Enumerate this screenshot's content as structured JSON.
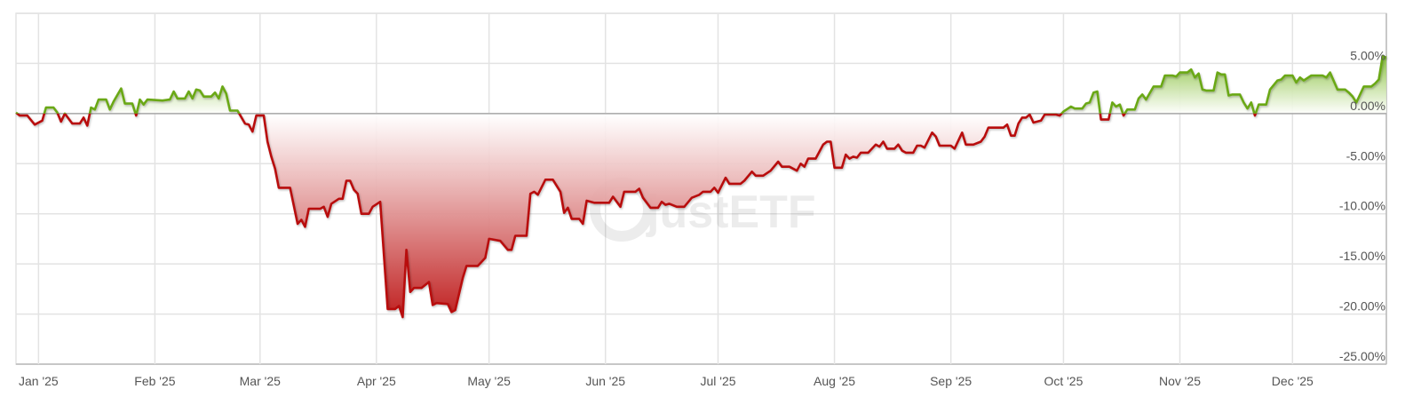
{
  "chart_data": {
    "type": "area",
    "title": "",
    "xlabel": "",
    "ylabel": "",
    "ylim": [
      -25,
      10
    ],
    "xlim": [
      "2024-12-26",
      "2025-12-26"
    ],
    "grid": true,
    "legend": "none",
    "watermark": "justETF",
    "colors": {
      "positive_line": "#6aa812",
      "negative_line": "#b80c0c",
      "positive_fill": "#86bf3a",
      "negative_fill": "#bf1d1d",
      "zero_line": "#a8a8a8",
      "grid": "#e3e3e3"
    },
    "x_ticks": [
      {
        "date": "2025-01-01",
        "label": "Jan '25"
      },
      {
        "date": "2025-02-01",
        "label": "Feb '25"
      },
      {
        "date": "2025-03-01",
        "label": "Mar '25"
      },
      {
        "date": "2025-04-01",
        "label": "Apr '25"
      },
      {
        "date": "2025-05-01",
        "label": "May '25"
      },
      {
        "date": "2025-06-01",
        "label": "Jun '25"
      },
      {
        "date": "2025-07-01",
        "label": "Jul '25"
      },
      {
        "date": "2025-08-01",
        "label": "Aug '25"
      },
      {
        "date": "2025-09-01",
        "label": "Sep '25"
      },
      {
        "date": "2025-10-01",
        "label": "Oct '25"
      },
      {
        "date": "2025-11-01",
        "label": "Nov '25"
      },
      {
        "date": "2025-12-01",
        "label": "Dec '25"
      }
    ],
    "y_ticks": [
      {
        "value": 5,
        "label": "5.00%"
      },
      {
        "value": 0,
        "label": "0.00%"
      },
      {
        "value": -5,
        "label": "-5.00%"
      },
      {
        "value": -10,
        "label": "-10.00%"
      },
      {
        "value": -15,
        "label": "-15.00%"
      },
      {
        "value": -20,
        "label": "-20.00%"
      },
      {
        "value": -25,
        "label": "-25.00%"
      }
    ],
    "series": [
      {
        "unit": "%",
        "points": [
          [
            "2024-12-26",
            0.1
          ],
          [
            "2024-12-27",
            -0.2
          ],
          [
            "2024-12-29",
            -0.2
          ],
          [
            "2024-12-31",
            -1.1
          ],
          [
            "2025-01-02",
            -0.7
          ],
          [
            "2025-01-03",
            0.6
          ],
          [
            "2025-01-05",
            0.6
          ],
          [
            "2025-01-06",
            0.1
          ],
          [
            "2025-01-07",
            -0.8
          ],
          [
            "2025-01-08",
            0.0
          ],
          [
            "2025-01-10",
            -1.0
          ],
          [
            "2025-01-12",
            -1.0
          ],
          [
            "2025-01-13",
            -0.4
          ],
          [
            "2025-01-14",
            -1.2
          ],
          [
            "2025-01-15",
            0.6
          ],
          [
            "2025-01-16",
            0.4
          ],
          [
            "2025-01-17",
            1.4
          ],
          [
            "2025-01-19",
            1.4
          ],
          [
            "2025-01-20",
            0.4
          ],
          [
            "2025-01-21",
            1.2
          ],
          [
            "2025-01-23",
            2.5
          ],
          [
            "2025-01-24",
            1.0
          ],
          [
            "2025-01-26",
            1.0
          ],
          [
            "2025-01-27",
            -0.2
          ],
          [
            "2025-01-28",
            1.4
          ],
          [
            "2025-01-29",
            0.9
          ],
          [
            "2025-01-30",
            1.4
          ],
          [
            "2025-02-03",
            1.3
          ],
          [
            "2025-02-05",
            1.4
          ],
          [
            "2025-02-06",
            2.2
          ],
          [
            "2025-02-07",
            1.5
          ],
          [
            "2025-02-09",
            1.5
          ],
          [
            "2025-02-10",
            2.2
          ],
          [
            "2025-02-11",
            1.5
          ],
          [
            "2025-02-12",
            2.4
          ],
          [
            "2025-02-13",
            2.3
          ],
          [
            "2025-02-14",
            1.7
          ],
          [
            "2025-02-16",
            1.7
          ],
          [
            "2025-02-17",
            2.1
          ],
          [
            "2025-02-18",
            1.5
          ],
          [
            "2025-02-19",
            2.7
          ],
          [
            "2025-02-20",
            2.0
          ],
          [
            "2025-02-21",
            0.3
          ],
          [
            "2025-02-23",
            0.3
          ],
          [
            "2025-02-25",
            -1.0
          ],
          [
            "2025-02-26",
            -1.1
          ],
          [
            "2025-02-27",
            -1.8
          ],
          [
            "2025-02-28",
            -0.2
          ],
          [
            "2025-03-02",
            -0.2
          ],
          [
            "2025-03-03",
            -2.8
          ],
          [
            "2025-03-04",
            -4.3
          ],
          [
            "2025-03-05",
            -5.5
          ],
          [
            "2025-03-06",
            -7.4
          ],
          [
            "2025-03-09",
            -7.4
          ],
          [
            "2025-03-11",
            -11.0
          ],
          [
            "2025-03-12",
            -10.6
          ],
          [
            "2025-03-13",
            -11.3
          ],
          [
            "2025-03-14",
            -9.5
          ],
          [
            "2025-03-17",
            -9.5
          ],
          [
            "2025-03-18",
            -9.3
          ],
          [
            "2025-03-19",
            -10.3
          ],
          [
            "2025-03-20",
            -9.0
          ],
          [
            "2025-03-22",
            -8.5
          ],
          [
            "2025-03-23",
            -8.5
          ],
          [
            "2025-03-24",
            -6.7
          ],
          [
            "2025-03-25",
            -6.7
          ],
          [
            "2025-03-26",
            -7.6
          ],
          [
            "2025-03-27",
            -8.0
          ],
          [
            "2025-03-28",
            -10.0
          ],
          [
            "2025-03-30",
            -10.0
          ],
          [
            "2025-03-31",
            -9.3
          ],
          [
            "2025-04-02",
            -8.8
          ],
          [
            "2025-04-04",
            -19.5
          ],
          [
            "2025-04-06",
            -19.5
          ],
          [
            "2025-04-07",
            -19.2
          ],
          [
            "2025-04-08",
            -20.3
          ],
          [
            "2025-04-09",
            -13.6
          ],
          [
            "2025-04-10",
            -17.8
          ],
          [
            "2025-04-11",
            -17.4
          ],
          [
            "2025-04-13",
            -17.4
          ],
          [
            "2025-04-15",
            -16.8
          ],
          [
            "2025-04-16",
            -19.1
          ],
          [
            "2025-04-17",
            -18.9
          ],
          [
            "2025-04-20",
            -19.0
          ],
          [
            "2025-04-21",
            -19.8
          ],
          [
            "2025-04-22",
            -19.6
          ],
          [
            "2025-04-24",
            -16.4
          ],
          [
            "2025-04-25",
            -15.2
          ],
          [
            "2025-04-28",
            -15.2
          ],
          [
            "2025-04-30",
            -14.4
          ],
          [
            "2025-05-01",
            -12.5
          ],
          [
            "2025-05-04",
            -12.7
          ],
          [
            "2025-05-06",
            -13.6
          ],
          [
            "2025-05-07",
            -13.6
          ],
          [
            "2025-05-08",
            -12.2
          ],
          [
            "2025-05-11",
            -12.2
          ],
          [
            "2025-05-12",
            -8.0
          ],
          [
            "2025-05-13",
            -7.8
          ],
          [
            "2025-05-14",
            -8.1
          ],
          [
            "2025-05-16",
            -6.6
          ],
          [
            "2025-05-18",
            -6.6
          ],
          [
            "2025-05-20",
            -7.8
          ],
          [
            "2025-05-21",
            -9.9
          ],
          [
            "2025-05-22",
            -9.4
          ],
          [
            "2025-05-23",
            -10.5
          ],
          [
            "2025-05-25",
            -10.5
          ],
          [
            "2025-05-26",
            -11.0
          ],
          [
            "2025-05-27",
            -8.7
          ],
          [
            "2025-05-29",
            -8.9
          ],
          [
            "2025-06-02",
            -8.9
          ],
          [
            "2025-06-03",
            -8.3
          ],
          [
            "2025-06-05",
            -9.3
          ],
          [
            "2025-06-06",
            -7.8
          ],
          [
            "2025-06-09",
            -7.8
          ],
          [
            "2025-06-10",
            -7.5
          ],
          [
            "2025-06-11",
            -8.4
          ],
          [
            "2025-06-13",
            -9.4
          ],
          [
            "2025-06-15",
            -9.4
          ],
          [
            "2025-06-16",
            -8.8
          ],
          [
            "2025-06-17",
            -9.1
          ],
          [
            "2025-06-18",
            -9.0
          ],
          [
            "2025-06-20",
            -9.3
          ],
          [
            "2025-06-22",
            -9.3
          ],
          [
            "2025-06-24",
            -8.4
          ],
          [
            "2025-06-26",
            -8.1
          ],
          [
            "2025-06-27",
            -7.8
          ],
          [
            "2025-06-29",
            -7.8
          ],
          [
            "2025-06-30",
            -7.4
          ],
          [
            "2025-07-01",
            -7.9
          ],
          [
            "2025-07-03",
            -6.4
          ],
          [
            "2025-07-04",
            -7.0
          ],
          [
            "2025-07-07",
            -7.0
          ],
          [
            "2025-07-08",
            -6.7
          ],
          [
            "2025-07-10",
            -5.8
          ],
          [
            "2025-07-11",
            -6.2
          ],
          [
            "2025-07-13",
            -6.2
          ],
          [
            "2025-07-15",
            -5.7
          ],
          [
            "2025-07-17",
            -4.8
          ],
          [
            "2025-07-18",
            -5.3
          ],
          [
            "2025-07-20",
            -5.3
          ],
          [
            "2025-07-22",
            -5.7
          ],
          [
            "2025-07-23",
            -5.0
          ],
          [
            "2025-07-24",
            -5.3
          ],
          [
            "2025-07-25",
            -4.5
          ],
          [
            "2025-07-27",
            -4.5
          ],
          [
            "2025-07-29",
            -3.1
          ],
          [
            "2025-07-30",
            -2.8
          ],
          [
            "2025-07-31",
            -2.8
          ],
          [
            "2025-08-01",
            -5.4
          ],
          [
            "2025-08-03",
            -5.4
          ],
          [
            "2025-08-04",
            -4.1
          ],
          [
            "2025-08-05",
            -4.5
          ],
          [
            "2025-08-06",
            -4.3
          ],
          [
            "2025-08-07",
            -4.4
          ],
          [
            "2025-08-08",
            -3.9
          ],
          [
            "2025-08-10",
            -3.9
          ],
          [
            "2025-08-12",
            -3.1
          ],
          [
            "2025-08-13",
            -3.3
          ],
          [
            "2025-08-14",
            -2.8
          ],
          [
            "2025-08-15",
            -3.5
          ],
          [
            "2025-08-17",
            -3.5
          ],
          [
            "2025-08-18",
            -3.1
          ],
          [
            "2025-08-19",
            -3.7
          ],
          [
            "2025-08-20",
            -3.9
          ],
          [
            "2025-08-22",
            -3.9
          ],
          [
            "2025-08-23",
            -3.2
          ],
          [
            "2025-08-24",
            -3.2
          ],
          [
            "2025-08-25",
            -3.4
          ],
          [
            "2025-08-27",
            -1.9
          ],
          [
            "2025-08-28",
            -2.3
          ],
          [
            "2025-08-29",
            -3.2
          ],
          [
            "2025-09-01",
            -3.2
          ],
          [
            "2025-09-02",
            -3.5
          ],
          [
            "2025-09-04",
            -1.9
          ],
          [
            "2025-09-05",
            -3.1
          ],
          [
            "2025-09-07",
            -3.1
          ],
          [
            "2025-09-09",
            -2.8
          ],
          [
            "2025-09-10",
            -2.3
          ],
          [
            "2025-09-11",
            -1.4
          ],
          [
            "2025-09-15",
            -1.4
          ],
          [
            "2025-09-16",
            -1.1
          ],
          [
            "2025-09-17",
            -2.2
          ],
          [
            "2025-09-18",
            -2.2
          ],
          [
            "2025-09-19",
            -1.0
          ],
          [
            "2025-09-20",
            -0.4
          ],
          [
            "2025-09-21",
            -0.4
          ],
          [
            "2025-09-22",
            -0.1
          ],
          [
            "2025-09-23",
            -0.9
          ],
          [
            "2025-09-25",
            -0.7
          ],
          [
            "2025-09-26",
            -0.1
          ],
          [
            "2025-09-29",
            -0.1
          ],
          [
            "2025-09-30",
            -0.2
          ],
          [
            "2025-10-01",
            0.2
          ],
          [
            "2025-10-03",
            0.7
          ],
          [
            "2025-10-04",
            0.5
          ],
          [
            "2025-10-06",
            0.5
          ],
          [
            "2025-10-07",
            1.0
          ],
          [
            "2025-10-08",
            1.1
          ],
          [
            "2025-10-09",
            2.1
          ],
          [
            "2025-10-10",
            2.2
          ],
          [
            "2025-10-11",
            -0.6
          ],
          [
            "2025-10-13",
            -0.6
          ],
          [
            "2025-10-14",
            1.1
          ],
          [
            "2025-10-15",
            0.7
          ],
          [
            "2025-10-16",
            0.9
          ],
          [
            "2025-10-17",
            -0.2
          ],
          [
            "2025-10-18",
            0.4
          ],
          [
            "2025-10-20",
            0.4
          ],
          [
            "2025-10-21",
            1.5
          ],
          [
            "2025-10-22",
            1.9
          ],
          [
            "2025-10-23",
            1.4
          ],
          [
            "2025-10-25",
            2.7
          ],
          [
            "2025-10-27",
            2.7
          ],
          [
            "2025-10-28",
            3.8
          ],
          [
            "2025-10-30",
            3.8
          ],
          [
            "2025-10-31",
            3.7
          ],
          [
            "2025-11-01",
            4.1
          ],
          [
            "2025-11-03",
            4.1
          ],
          [
            "2025-11-04",
            4.4
          ],
          [
            "2025-11-05",
            3.6
          ],
          [
            "2025-11-06",
            4.0
          ],
          [
            "2025-11-07",
            2.4
          ],
          [
            "2025-11-08",
            2.3
          ],
          [
            "2025-11-10",
            2.3
          ],
          [
            "2025-11-11",
            4.1
          ],
          [
            "2025-11-12",
            3.9
          ],
          [
            "2025-11-13",
            3.9
          ],
          [
            "2025-11-14",
            1.8
          ],
          [
            "2025-11-15",
            1.9
          ],
          [
            "2025-11-17",
            1.9
          ],
          [
            "2025-11-18",
            1.1
          ],
          [
            "2025-11-19",
            0.5
          ],
          [
            "2025-11-20",
            1.1
          ],
          [
            "2025-11-21",
            -0.2
          ],
          [
            "2025-11-22",
            0.9
          ],
          [
            "2025-11-24",
            0.9
          ],
          [
            "2025-11-25",
            2.4
          ],
          [
            "2025-11-27",
            3.3
          ],
          [
            "2025-11-28",
            3.4
          ],
          [
            "2025-11-29",
            3.8
          ],
          [
            "2025-12-01",
            3.8
          ],
          [
            "2025-12-02",
            3.1
          ],
          [
            "2025-12-03",
            3.6
          ],
          [
            "2025-12-04",
            3.3
          ],
          [
            "2025-12-06",
            3.8
          ],
          [
            "2025-12-09",
            3.8
          ],
          [
            "2025-12-10",
            3.6
          ],
          [
            "2025-12-11",
            4.1
          ],
          [
            "2025-12-13",
            2.4
          ],
          [
            "2025-12-15",
            2.4
          ],
          [
            "2025-12-16",
            2.1
          ],
          [
            "2025-12-17",
            1.7
          ],
          [
            "2025-12-18",
            1.1
          ],
          [
            "2025-12-20",
            2.7
          ],
          [
            "2025-12-22",
            2.7
          ],
          [
            "2025-12-23",
            3.0
          ],
          [
            "2025-12-24",
            3.4
          ],
          [
            "2025-12-25",
            5.7
          ],
          [
            "2025-12-26",
            5.6
          ]
        ]
      }
    ]
  }
}
